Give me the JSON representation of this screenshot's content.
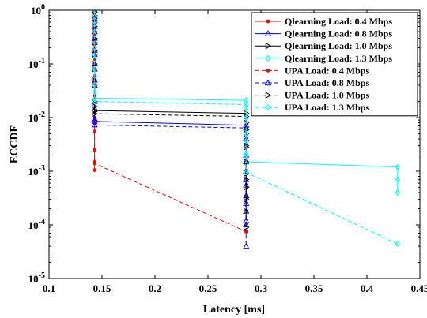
{
  "chart_data": {
    "type": "line",
    "title": "",
    "xlabel": "Latency [ms]",
    "ylabel": "ECCDF",
    "xlim": [
      0.1,
      0.45
    ],
    "ylim": [
      1e-05,
      1
    ],
    "yscale": "log",
    "x_ticks": [
      0.1,
      0.15,
      0.2,
      0.25,
      0.3,
      0.35,
      0.4,
      0.45
    ],
    "x_tick_labels": [
      "0.1",
      "0.15",
      "0.2",
      "0.25",
      "0.3",
      "0.35",
      "0.4",
      "0.45"
    ],
    "y_ticks": [
      1e-05,
      0.0001,
      0.001,
      0.01,
      0.1,
      1
    ],
    "y_tick_labels": [
      {
        "base": "10",
        "exp": "-5"
      },
      {
        "base": "10",
        "exp": "-4"
      },
      {
        "base": "10",
        "exp": "-3"
      },
      {
        "base": "10",
        "exp": "-2"
      },
      {
        "base": "10",
        "exp": "-1"
      },
      {
        "base": "10",
        "exp": "0"
      }
    ],
    "grid": false,
    "legend_position": "top-right",
    "series": [
      {
        "name": "Qlearning Load: 0.4 Mbps",
        "color": "#ff0000",
        "dash": "solid",
        "marker": "dot",
        "points": [
          [
            0.143,
            1
          ],
          [
            0.143,
            0.9
          ],
          [
            0.143,
            0.75
          ],
          [
            0.143,
            0.6
          ],
          [
            0.143,
            0.45
          ],
          [
            0.143,
            0.3
          ],
          [
            0.143,
            0.18
          ],
          [
            0.143,
            0.1
          ],
          [
            0.143,
            0.05
          ],
          [
            0.143,
            0.02
          ],
          [
            0.143,
            0.01
          ],
          [
            0.143,
            0.0055
          ],
          [
            0.143,
            0.0015
          ],
          [
            0.143,
            0.00105
          ]
        ]
      },
      {
        "name": "Qlearning Load: 0.8 Mbps",
        "color": "#0000ff",
        "dash": "solid",
        "marker": "triangle-up",
        "points": [
          [
            0.143,
            1
          ],
          [
            0.143,
            0.8
          ],
          [
            0.143,
            0.6
          ],
          [
            0.143,
            0.4
          ],
          [
            0.143,
            0.25
          ],
          [
            0.143,
            0.15
          ],
          [
            0.143,
            0.08
          ],
          [
            0.143,
            0.04
          ],
          [
            0.143,
            0.015
          ],
          [
            0.143,
            0.0095
          ],
          [
            0.143,
            0.0085
          ],
          [
            0.286,
            0.0072
          ],
          [
            0.286,
            0.004
          ],
          [
            0.286,
            0.002
          ],
          [
            0.286,
            0.001
          ],
          [
            0.286,
            0.00055
          ],
          [
            0.286,
            0.00025
          ],
          [
            0.286,
            0.00012
          ]
        ]
      },
      {
        "name": "Qlearning Load: 1.0 Mbps",
        "color": "#000000",
        "dash": "solid",
        "marker": "triangle-right",
        "points": [
          [
            0.143,
            1
          ],
          [
            0.143,
            0.8
          ],
          [
            0.143,
            0.6
          ],
          [
            0.143,
            0.4
          ],
          [
            0.143,
            0.25
          ],
          [
            0.143,
            0.15
          ],
          [
            0.143,
            0.08
          ],
          [
            0.143,
            0.04
          ],
          [
            0.143,
            0.02
          ],
          [
            0.143,
            0.016
          ],
          [
            0.143,
            0.0135
          ],
          [
            0.286,
            0.012
          ],
          [
            0.286,
            0.008
          ],
          [
            0.286,
            0.005
          ],
          [
            0.286,
            0.0028
          ],
          [
            0.286,
            0.0015
          ],
          [
            0.286,
            0.0009
          ],
          [
            0.286,
            0.0005
          ],
          [
            0.286,
            0.00032
          ]
        ]
      },
      {
        "name": "Qlearning Load: 1.3 Mbps",
        "color": "#00ffff",
        "dash": "solid",
        "marker": "diamond",
        "points": [
          [
            0.143,
            1
          ],
          [
            0.143,
            0.8
          ],
          [
            0.143,
            0.6
          ],
          [
            0.143,
            0.4
          ],
          [
            0.143,
            0.25
          ],
          [
            0.143,
            0.15
          ],
          [
            0.143,
            0.08
          ],
          [
            0.143,
            0.04
          ],
          [
            0.143,
            0.026
          ],
          [
            0.143,
            0.023
          ],
          [
            0.286,
            0.021
          ],
          [
            0.286,
            0.015
          ],
          [
            0.286,
            0.01
          ],
          [
            0.286,
            0.006
          ],
          [
            0.286,
            0.0035
          ],
          [
            0.286,
            0.0022
          ],
          [
            0.286,
            0.0015
          ],
          [
            0.429,
            0.0012
          ],
          [
            0.429,
            0.0007
          ],
          [
            0.429,
            0.0004
          ]
        ]
      },
      {
        "name": "UPA Load: 0.4 Mbps",
        "color": "#ff0000",
        "dash": "dashed",
        "marker": "dot",
        "points": [
          [
            0.143,
            1
          ],
          [
            0.143,
            0.85
          ],
          [
            0.143,
            0.65
          ],
          [
            0.143,
            0.5
          ],
          [
            0.143,
            0.35
          ],
          [
            0.143,
            0.22
          ],
          [
            0.143,
            0.12
          ],
          [
            0.143,
            0.06
          ],
          [
            0.143,
            0.025
          ],
          [
            0.143,
            0.008
          ],
          [
            0.143,
            0.0025
          ],
          [
            0.143,
            0.0014
          ],
          [
            0.286,
            7.5e-05
          ]
        ]
      },
      {
        "name": "UPA Load: 0.8 Mbps",
        "color": "#0000ff",
        "dash": "dashed",
        "marker": "triangle-up",
        "points": [
          [
            0.143,
            1
          ],
          [
            0.143,
            0.7
          ],
          [
            0.143,
            0.5
          ],
          [
            0.143,
            0.3
          ],
          [
            0.143,
            0.18
          ],
          [
            0.143,
            0.1
          ],
          [
            0.143,
            0.05
          ],
          [
            0.143,
            0.02
          ],
          [
            0.143,
            0.009
          ],
          [
            0.143,
            0.0073
          ],
          [
            0.286,
            0.0064
          ],
          [
            0.286,
            0.003
          ],
          [
            0.286,
            0.0015
          ],
          [
            0.286,
            0.0007
          ],
          [
            0.286,
            0.00035
          ],
          [
            0.286,
            0.00018
          ],
          [
            0.286,
            0.0001
          ],
          [
            0.286,
            4e-05
          ]
        ]
      },
      {
        "name": "UPA Load: 1.0 Mbps",
        "color": "#000000",
        "dash": "dashed",
        "marker": "triangle-right",
        "points": [
          [
            0.143,
            1
          ],
          [
            0.143,
            0.7
          ],
          [
            0.143,
            0.5
          ],
          [
            0.143,
            0.3
          ],
          [
            0.143,
            0.18
          ],
          [
            0.143,
            0.1
          ],
          [
            0.143,
            0.05
          ],
          [
            0.143,
            0.02
          ],
          [
            0.143,
            0.013
          ],
          [
            0.143,
            0.0118
          ],
          [
            0.286,
            0.0105
          ],
          [
            0.286,
            0.006
          ],
          [
            0.286,
            0.003
          ],
          [
            0.286,
            0.0015
          ],
          [
            0.286,
            0.0007
          ],
          [
            0.286,
            0.0003
          ],
          [
            0.286,
            0.00018
          ],
          [
            0.286,
            9e-05
          ]
        ]
      },
      {
        "name": "UPA Load: 1.3 Mbps",
        "color": "#00ffff",
        "dash": "dashed",
        "marker": "diamond",
        "points": [
          [
            0.143,
            1
          ],
          [
            0.143,
            0.75
          ],
          [
            0.143,
            0.55
          ],
          [
            0.143,
            0.35
          ],
          [
            0.143,
            0.2
          ],
          [
            0.143,
            0.12
          ],
          [
            0.143,
            0.06
          ],
          [
            0.143,
            0.03
          ],
          [
            0.143,
            0.022
          ],
          [
            0.143,
            0.02
          ],
          [
            0.286,
            0.0175
          ],
          [
            0.286,
            0.01
          ],
          [
            0.286,
            0.005
          ],
          [
            0.286,
            0.002
          ],
          [
            0.286,
            0.00095
          ],
          [
            0.429,
            4.4e-05
          ]
        ]
      }
    ]
  }
}
